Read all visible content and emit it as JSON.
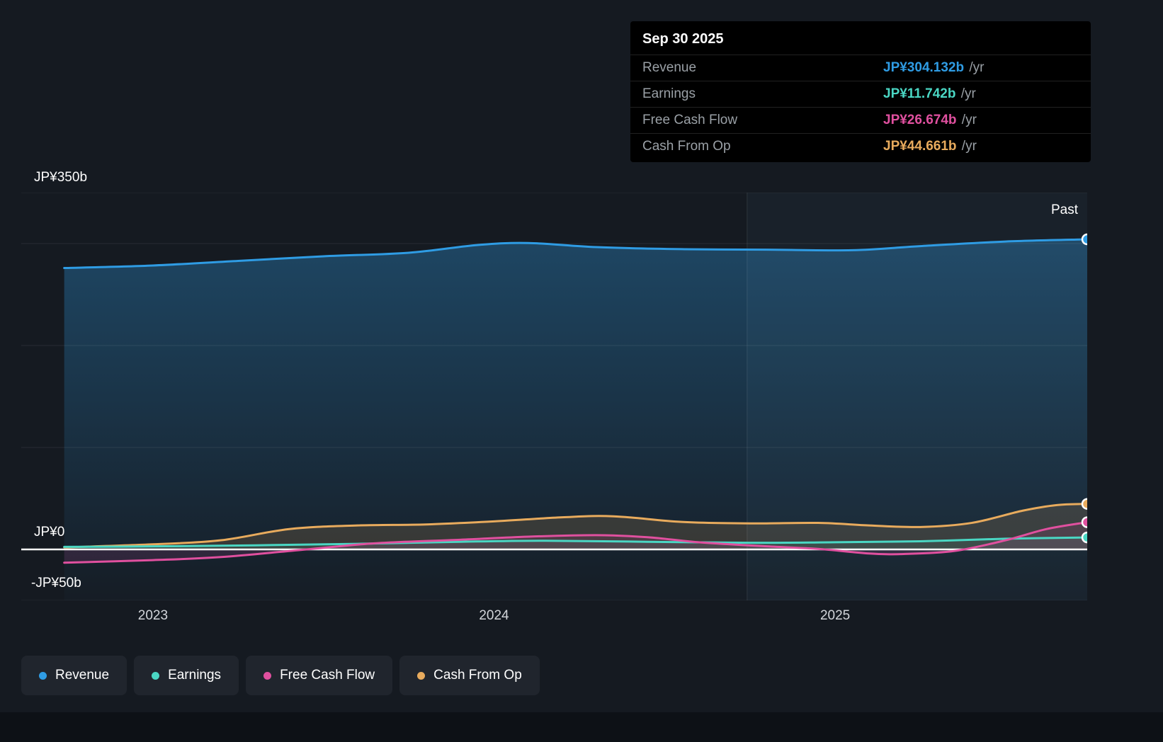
{
  "page": {
    "background": "#151a21"
  },
  "tooltip": {
    "date": "Sep 30 2025",
    "rows": [
      {
        "label": "Revenue",
        "value": "JP¥304.132b",
        "suffix": "/yr",
        "color": "#2f9ce4"
      },
      {
        "label": "Earnings",
        "value": "JP¥11.742b",
        "suffix": "/yr",
        "color": "#4ad6c3"
      },
      {
        "label": "Free Cash Flow",
        "value": "JP¥26.674b",
        "suffix": "/yr",
        "color": "#e0509f"
      },
      {
        "label": "Cash From Op",
        "value": "JP¥44.661b",
        "suffix": "/yr",
        "color": "#e8ab5d"
      }
    ]
  },
  "chart_data": {
    "type": "area",
    "past_label": "Past",
    "x_domain": [
      2022.614,
      2025.739
    ],
    "divider_x": 2024.742,
    "x_ticks": [
      {
        "label": "2023",
        "x": 2023
      },
      {
        "label": "2024",
        "x": 2024
      },
      {
        "label": "2025",
        "x": 2025
      }
    ],
    "y_axis": {
      "range": [
        -50,
        350
      ],
      "unit": "JP¥ billions",
      "labels": [
        {
          "text": "JP¥350b",
          "value": 350
        },
        {
          "text": "JP¥0",
          "value": 0
        },
        {
          "text": "-JP¥50b",
          "value": -50
        }
      ],
      "gridlines": [
        350,
        300,
        200,
        100,
        -50
      ]
    },
    "series": [
      {
        "name": "Revenue",
        "color": "#2f9ce4",
        "fill": "gradient",
        "baseline": "bottom",
        "points": [
          [
            2022.74,
            276
          ],
          [
            2023.0,
            278.5
          ],
          [
            2023.25,
            283
          ],
          [
            2023.5,
            287.5
          ],
          [
            2023.75,
            291
          ],
          [
            2023.95,
            298.5
          ],
          [
            2024.1,
            300.5
          ],
          [
            2024.3,
            296.5
          ],
          [
            2024.55,
            294.5
          ],
          [
            2024.8,
            294
          ],
          [
            2025.05,
            293.5
          ],
          [
            2025.25,
            297.5
          ],
          [
            2025.5,
            302
          ],
          [
            2025.739,
            304.132
          ]
        ]
      },
      {
        "name": "Cash From Op",
        "color": "#e8ab5d",
        "fill_opacity": 0.16,
        "baseline": "zero",
        "points": [
          [
            2022.74,
            2
          ],
          [
            2023.0,
            5
          ],
          [
            2023.2,
            9
          ],
          [
            2023.4,
            20
          ],
          [
            2023.6,
            23.5
          ],
          [
            2023.8,
            24.5
          ],
          [
            2024.0,
            27.5
          ],
          [
            2024.2,
            31.5
          ],
          [
            2024.35,
            32.5
          ],
          [
            2024.55,
            27
          ],
          [
            2024.75,
            25.5
          ],
          [
            2024.95,
            26
          ],
          [
            2025.1,
            23.5
          ],
          [
            2025.25,
            22
          ],
          [
            2025.4,
            26
          ],
          [
            2025.55,
            38
          ],
          [
            2025.65,
            43.5
          ],
          [
            2025.739,
            44.661
          ]
        ]
      },
      {
        "name": "Earnings",
        "color": "#4ad6c3",
        "fill_opacity": 0.1,
        "baseline": "zero",
        "points": [
          [
            2022.74,
            2.5
          ],
          [
            2023.0,
            3
          ],
          [
            2023.3,
            4
          ],
          [
            2023.6,
            5.5
          ],
          [
            2023.9,
            7.5
          ],
          [
            2024.15,
            8.5
          ],
          [
            2024.45,
            7.5
          ],
          [
            2024.75,
            6.5
          ],
          [
            2025.0,
            7
          ],
          [
            2025.25,
            8
          ],
          [
            2025.5,
            10.5
          ],
          [
            2025.739,
            11.742
          ]
        ]
      },
      {
        "name": "Free Cash Flow",
        "color": "#e0509f",
        "fill_opacity": 0.13,
        "baseline": "zero",
        "points": [
          [
            2022.74,
            -13
          ],
          [
            2023.0,
            -10.5
          ],
          [
            2023.2,
            -7.5
          ],
          [
            2023.45,
            0
          ],
          [
            2023.65,
            6
          ],
          [
            2023.9,
            9.5
          ],
          [
            2024.1,
            12.5
          ],
          [
            2024.3,
            14
          ],
          [
            2024.45,
            12
          ],
          [
            2024.6,
            7
          ],
          [
            2024.8,
            3
          ],
          [
            2024.95,
            0.5
          ],
          [
            2025.1,
            -4
          ],
          [
            2025.2,
            -4.5
          ],
          [
            2025.35,
            -1.5
          ],
          [
            2025.5,
            9
          ],
          [
            2025.62,
            20
          ],
          [
            2025.739,
            26.674
          ]
        ]
      }
    ]
  },
  "legend": {
    "items": [
      {
        "label": "Revenue",
        "color": "#2f9ce4"
      },
      {
        "label": "Earnings",
        "color": "#4ad6c3"
      },
      {
        "label": "Free Cash Flow",
        "color": "#e0509f"
      },
      {
        "label": "Cash From Op",
        "color": "#e8ab5d"
      }
    ]
  }
}
